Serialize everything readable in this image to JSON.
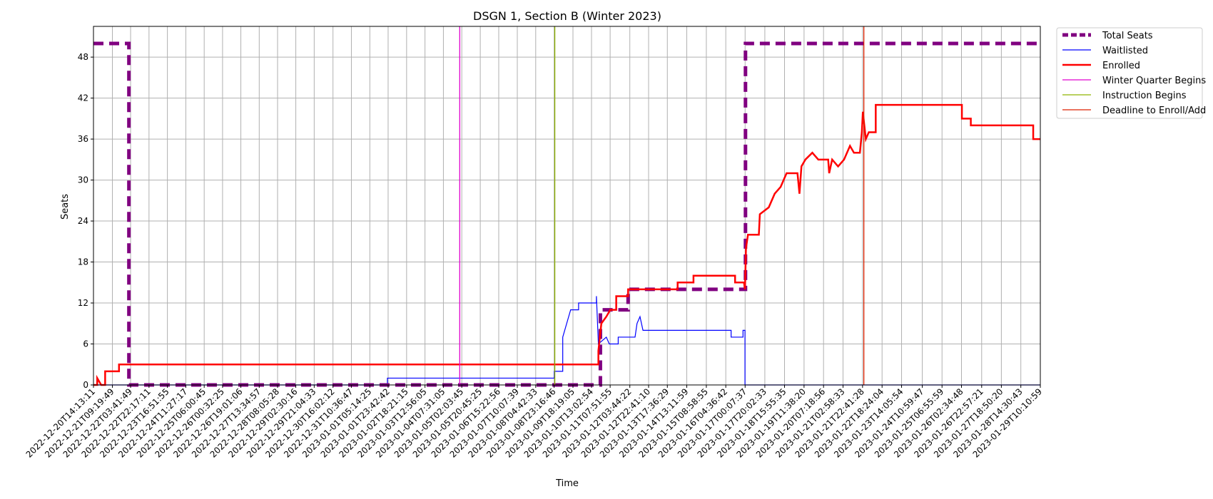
{
  "chart_data": {
    "type": "line",
    "title": "DSGN 1, Section B (Winter 2023)",
    "xlabel": "Time",
    "ylabel": "Seats",
    "grid": true,
    "legend_position": "outside-top-right",
    "xlim": [
      "2022-12-20T14:13:11",
      "2023-01-29T10:10:59"
    ],
    "ylim": [
      0,
      52.5
    ],
    "yticks": [
      0,
      6,
      12,
      18,
      24,
      30,
      36,
      42,
      48
    ],
    "xticks": [
      "2022-12-20T14:13:11",
      "2022-12-21T09:19:49",
      "2022-12-22T03:41:49",
      "2022-12-22T22:17:11",
      "2022-12-23T16:51:55",
      "2022-12-24T11:27:17",
      "2022-12-25T06:00:45",
      "2022-12-26T00:32:25",
      "2022-12-26T19:01:06",
      "2022-12-27T13:34:57",
      "2022-12-28T08:05:28",
      "2022-12-29T02:30:16",
      "2022-12-29T21:04:33",
      "2022-12-30T16:02:12",
      "2022-12-31T10:36:47",
      "2023-01-01T05:14:25",
      "2023-01-01T23:42:42",
      "2023-01-02T18:21:15",
      "2023-01-03T12:56:05",
      "2023-01-04T07:31:05",
      "2023-01-05T02:03:45",
      "2023-01-05T20:45:25",
      "2023-01-06T15:22:56",
      "2023-01-07T10:07:39",
      "2023-01-08T04:42:33",
      "2023-01-08T23:16:46",
      "2023-01-09T18:19:05",
      "2023-01-10T13:02:54",
      "2023-01-11T07:51:55",
      "2023-01-12T03:44:22",
      "2023-01-12T22:41:10",
      "2023-01-13T17:36:29",
      "2023-01-14T13:11:59",
      "2023-01-15T08:58:55",
      "2023-01-16T04:36:42",
      "2023-01-17T00:07:37",
      "2023-01-17T20:02:33",
      "2023-01-18T15:55:35",
      "2023-01-19T11:38:20",
      "2023-01-20T07:18:56",
      "2023-01-21T02:58:33",
      "2023-01-21T22:41:28",
      "2023-01-22T18:24:04",
      "2023-01-23T14:05:54",
      "2023-01-24T10:59:47",
      "2023-01-25T06:55:59",
      "2023-01-26T02:34:48",
      "2023-01-26T22:57:21",
      "2023-01-27T18:50:20",
      "2023-01-28T14:30:43",
      "2023-01-29T10:10:59"
    ],
    "series": [
      {
        "name": "Total Seats",
        "style": "step-dashed",
        "color": "#800080",
        "points": [
          [
            "2022-12-20T14:13:11",
            50
          ],
          [
            "2022-12-22T02:00:00",
            50
          ],
          [
            "2022-12-22T02:00:00",
            0
          ],
          [
            "2023-01-10T22:00:00",
            0
          ],
          [
            "2023-01-10T22:00:00",
            11
          ],
          [
            "2023-01-12T02:00:00",
            11
          ],
          [
            "2023-01-12T02:00:00",
            14
          ],
          [
            "2023-01-17T00:30:00",
            14
          ],
          [
            "2023-01-17T00:30:00",
            50
          ],
          [
            "2023-01-29T10:10:59",
            50
          ]
        ]
      },
      {
        "name": "Waitlisted",
        "style": "step",
        "color": "#0000ff",
        "points": [
          [
            "2022-12-20T14:13:11",
            0
          ],
          [
            "2023-01-01T23:00:00",
            0
          ],
          [
            "2023-01-01T23:00:00",
            1
          ],
          [
            "2023-01-08T23:30:00",
            1
          ],
          [
            "2023-01-08T23:30:00",
            2
          ],
          [
            "2023-01-09T08:00:00",
            2
          ],
          [
            "2023-01-09T08:00:00",
            7
          ],
          [
            "2023-01-09T12:00:00",
            9
          ],
          [
            "2023-01-09T16:00:00",
            11
          ],
          [
            "2023-01-10T00:00:00",
            11
          ],
          [
            "2023-01-10T00:00:00",
            12
          ],
          [
            "2023-01-10T18:00:00",
            12
          ],
          [
            "2023-01-10T18:00:00",
            13
          ],
          [
            "2023-01-10T20:00:00",
            6
          ],
          [
            "2023-01-11T04:00:00",
            7
          ],
          [
            "2023-01-11T07:00:00",
            6
          ],
          [
            "2023-01-11T16:00:00",
            6
          ],
          [
            "2023-01-11T16:00:00",
            7
          ],
          [
            "2023-01-12T09:00:00",
            7
          ],
          [
            "2023-01-12T11:00:00",
            9
          ],
          [
            "2023-01-12T14:00:00",
            10
          ],
          [
            "2023-01-12T17:00:00",
            8
          ],
          [
            "2023-01-16T10:00:00",
            8
          ],
          [
            "2023-01-16T10:00:00",
            7
          ],
          [
            "2023-01-16T22:00:00",
            7
          ],
          [
            "2023-01-16T22:00:00",
            8
          ],
          [
            "2023-01-17T00:00:00",
            8
          ],
          [
            "2023-01-17T00:00:00",
            0
          ],
          [
            "2023-01-29T10:10:59",
            0
          ]
        ]
      },
      {
        "name": "Enrolled",
        "style": "step",
        "color": "#ff0000",
        "points": [
          [
            "2022-12-20T14:13:11",
            0
          ],
          [
            "2022-12-20T18:00:00",
            0
          ],
          [
            "2022-12-20T18:00:00",
            1
          ],
          [
            "2022-12-20T22:00:00",
            0
          ],
          [
            "2022-12-21T02:00:00",
            0
          ],
          [
            "2022-12-21T02:00:00",
            2
          ],
          [
            "2022-12-21T16:00:00",
            2
          ],
          [
            "2022-12-21T16:00:00",
            3
          ],
          [
            "2023-01-10T20:00:00",
            3
          ],
          [
            "2023-01-10T20:00:00",
            5
          ],
          [
            "2023-01-10T23:00:00",
            9
          ],
          [
            "2023-01-11T04:00:00",
            10
          ],
          [
            "2023-01-11T08:00:00",
            11
          ],
          [
            "2023-01-11T14:00:00",
            11
          ],
          [
            "2023-01-11T14:00:00",
            13
          ],
          [
            "2023-01-12T02:00:00",
            13
          ],
          [
            "2023-01-12T02:00:00",
            14
          ],
          [
            "2023-01-14T04:00:00",
            14
          ],
          [
            "2023-01-14T04:00:00",
            15
          ],
          [
            "2023-01-14T20:00:00",
            15
          ],
          [
            "2023-01-14T20:00:00",
            16
          ],
          [
            "2023-01-16T14:00:00",
            16
          ],
          [
            "2023-01-16T14:00:00",
            15
          ],
          [
            "2023-01-16T23:00:00",
            15
          ],
          [
            "2023-01-17T00:00:00",
            14
          ],
          [
            "2023-01-17T01:00:00",
            20
          ],
          [
            "2023-01-17T03:00:00",
            22
          ],
          [
            "2023-01-17T14:00:00",
            22
          ],
          [
            "2023-01-17T15:00:00",
            25
          ],
          [
            "2023-01-18T00:00:00",
            26
          ],
          [
            "2023-01-18T06:00:00",
            28
          ],
          [
            "2023-01-18T12:00:00",
            29
          ],
          [
            "2023-01-18T18:00:00",
            31
          ],
          [
            "2023-01-19T05:00:00",
            31
          ],
          [
            "2023-01-19T07:00:00",
            28
          ],
          [
            "2023-01-19T09:00:00",
            32
          ],
          [
            "2023-01-19T13:00:00",
            33
          ],
          [
            "2023-01-19T20:00:00",
            34
          ],
          [
            "2023-01-20T02:00:00",
            33
          ],
          [
            "2023-01-20T12:00:00",
            33
          ],
          [
            "2023-01-20T13:00:00",
            31
          ],
          [
            "2023-01-20T16:00:00",
            33
          ],
          [
            "2023-01-20T22:00:00",
            32
          ],
          [
            "2023-01-21T04:00:00",
            33
          ],
          [
            "2023-01-21T10:00:00",
            35
          ],
          [
            "2023-01-21T14:00:00",
            34
          ],
          [
            "2023-01-21T20:00:00",
            34
          ],
          [
            "2023-01-21T22:00:00",
            37
          ],
          [
            "2023-01-21T23:00:00",
            40
          ],
          [
            "2023-01-22T02:00:00",
            36
          ],
          [
            "2023-01-22T05:00:00",
            37
          ],
          [
            "2023-01-22T12:00:00",
            37
          ],
          [
            "2023-01-22T12:00:00",
            41
          ],
          [
            "2023-01-26T03:00:00",
            41
          ],
          [
            "2023-01-26T03:00:00",
            39
          ],
          [
            "2023-01-26T12:00:00",
            39
          ],
          [
            "2023-01-26T12:00:00",
            38
          ],
          [
            "2023-01-29T03:00:00",
            38
          ],
          [
            "2023-01-29T03:00:00",
            36
          ],
          [
            "2023-01-29T10:10:59",
            36
          ]
        ]
      }
    ],
    "vlines": [
      {
        "name": "Winter Quarter Begins",
        "x": "2023-01-05T00:00:00",
        "color": "#e000d0"
      },
      {
        "name": "Instruction Begins",
        "x": "2023-01-09T00:00:00",
        "color": "#8fb300"
      },
      {
        "name": "Deadline to Enroll/Add",
        "x": "2023-01-22T00:00:00",
        "color": "#dd2200"
      }
    ]
  }
}
